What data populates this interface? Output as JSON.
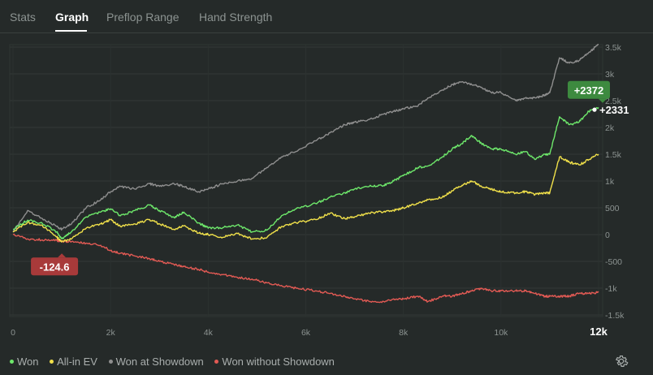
{
  "tabs": [
    {
      "label": "Stats"
    },
    {
      "label": "Graph"
    },
    {
      "label": "Preflop Range"
    },
    {
      "label": "Hand Strength"
    }
  ],
  "active_tab": "Graph",
  "colors": {
    "won": "#6ee86b",
    "allin_ev": "#f0e04a",
    "showdown": "#8f8f8f",
    "non_showdown": "#e25a54",
    "badge_green": "#3d8a3f",
    "badge_red": "#a83a3a"
  },
  "legend": [
    {
      "label": "Won",
      "color": "#6ee86b"
    },
    {
      "label": "All-in EV",
      "color": "#f0e04a"
    },
    {
      "label": "Won at Showdown",
      "color": "#8f8f8f"
    },
    {
      "label": "Won without Showdown",
      "color": "#e25a54"
    }
  ],
  "settings_icon": "gear-icon",
  "chart_data": {
    "type": "line",
    "xlim": [
      0,
      12000
    ],
    "ylim": [
      -1500,
      3600
    ],
    "x_ticks": [
      "0",
      "2k",
      "4k",
      "6k",
      "8k",
      "10k",
      "12k"
    ],
    "x_tick_values": [
      0,
      2000,
      4000,
      6000,
      8000,
      10000,
      12000
    ],
    "y_ticks": [
      "3.5k",
      "3k",
      "2.5k",
      "2k",
      "1.5k",
      "1k",
      "500",
      "0",
      "-500",
      "-1k",
      "-1.5k"
    ],
    "y_tick_values": [
      3500,
      3000,
      2500,
      2000,
      1500,
      1000,
      500,
      0,
      -500,
      -1000,
      -1500
    ],
    "grid": true,
    "legend_position": "bottom-left",
    "series": [
      {
        "name": "Won",
        "x": [
          0,
          300,
          600,
          900,
          1000,
          1200,
          1500,
          1800,
          2000,
          2200,
          2500,
          2800,
          3000,
          3300,
          3500,
          3800,
          4000,
          4300,
          4600,
          4900,
          5200,
          5500,
          5800,
          6200,
          6500,
          6800,
          7000,
          7300,
          7600,
          7800,
          8000,
          8300,
          8500,
          8800,
          9000,
          9200,
          9400,
          9600,
          9800,
          10000,
          10300,
          10500,
          10700,
          10900,
          11000,
          11200,
          11400,
          11600,
          11800,
          12000
        ],
        "y": [
          100,
          270,
          210,
          50,
          -80,
          50,
          330,
          420,
          480,
          350,
          450,
          550,
          450,
          320,
          420,
          220,
          120,
          130,
          180,
          50,
          80,
          350,
          480,
          580,
          700,
          780,
          850,
          900,
          920,
          1000,
          1100,
          1250,
          1280,
          1450,
          1600,
          1700,
          1850,
          1700,
          1600,
          1600,
          1500,
          1550,
          1400,
          1500,
          1500,
          2200,
          2050,
          2100,
          2300,
          2372
        ]
      },
      {
        "name": "All-in EV",
        "x": [
          0,
          300,
          600,
          900,
          1000,
          1200,
          1500,
          1800,
          2000,
          2200,
          2500,
          2800,
          3000,
          3300,
          3500,
          3800,
          4000,
          4300,
          4600,
          4900,
          5200,
          5500,
          5800,
          6200,
          6500,
          6800,
          7000,
          7300,
          7600,
          7800,
          8000,
          8300,
          8500,
          8800,
          9000,
          9200,
          9400,
          9600,
          9800,
          10000,
          10300,
          10500,
          10700,
          10900,
          11000,
          11200,
          11400,
          11600,
          11800,
          12000
        ],
        "y": [
          50,
          230,
          170,
          -50,
          -130,
          -80,
          120,
          200,
          280,
          150,
          200,
          280,
          200,
          100,
          160,
          30,
          0,
          -50,
          20,
          -80,
          -60,
          150,
          220,
          280,
          400,
          300,
          330,
          400,
          430,
          450,
          500,
          580,
          650,
          700,
          820,
          920,
          1000,
          900,
          850,
          800,
          780,
          800,
          750,
          780,
          780,
          1450,
          1350,
          1300,
          1400,
          1500
        ]
      },
      {
        "name": "Won at Showdown",
        "x": [
          0,
          300,
          600,
          900,
          1000,
          1200,
          1500,
          1800,
          2000,
          2200,
          2500,
          2800,
          3000,
          3300,
          3500,
          3800,
          4000,
          4300,
          4600,
          4900,
          5200,
          5500,
          5800,
          6200,
          6500,
          6800,
          7000,
          7300,
          7600,
          7800,
          8000,
          8300,
          8500,
          8800,
          9000,
          9200,
          9400,
          9600,
          9800,
          10000,
          10300,
          10500,
          10700,
          10900,
          11000,
          11200,
          11400,
          11600,
          11800,
          12000
        ],
        "y": [
          50,
          450,
          300,
          150,
          100,
          200,
          500,
          650,
          800,
          900,
          850,
          950,
          900,
          950,
          900,
          800,
          850,
          950,
          1000,
          1050,
          1250,
          1450,
          1550,
          1750,
          1900,
          2050,
          2100,
          2150,
          2250,
          2300,
          2350,
          2400,
          2550,
          2700,
          2800,
          2850,
          2800,
          2750,
          2650,
          2650,
          2500,
          2550,
          2550,
          2600,
          2650,
          3300,
          3200,
          3250,
          3400,
          3550
        ]
      },
      {
        "name": "Won without Showdown",
        "x": [
          0,
          300,
          600,
          900,
          1000,
          1200,
          1500,
          1800,
          2000,
          2200,
          2500,
          2800,
          3000,
          3300,
          3500,
          3800,
          4000,
          4300,
          4600,
          4900,
          5200,
          5500,
          5800,
          6200,
          6500,
          6800,
          7000,
          7300,
          7600,
          7800,
          8000,
          8300,
          8500,
          8800,
          9000,
          9200,
          9400,
          9600,
          9800,
          10000,
          10300,
          10500,
          10700,
          10900,
          11000,
          11200,
          11400,
          11600,
          11800,
          12000
        ],
        "y": [
          0,
          -80,
          -100,
          -110,
          -125,
          -130,
          -160,
          -200,
          -300,
          -350,
          -400,
          -450,
          -500,
          -560,
          -600,
          -650,
          -700,
          -750,
          -800,
          -830,
          -900,
          -950,
          -1000,
          -1050,
          -1100,
          -1150,
          -1200,
          -1250,
          -1250,
          -1200,
          -1200,
          -1150,
          -1250,
          -1150,
          -1150,
          -1100,
          -1050,
          -1000,
          -1050,
          -1050,
          -1050,
          -1050,
          -1100,
          -1150,
          -1150,
          -1150,
          -1150,
          -1100,
          -1100,
          -1080
        ]
      }
    ],
    "annotations": [
      {
        "text": "+2372",
        "x": 11800,
        "y": 2700,
        "style": "badge-green"
      },
      {
        "text": "+2331",
        "x": 11950,
        "y": 2331,
        "style": "label-white"
      },
      {
        "text": "-124.6",
        "x": 1000,
        "y": -125,
        "style": "badge-red"
      }
    ]
  }
}
